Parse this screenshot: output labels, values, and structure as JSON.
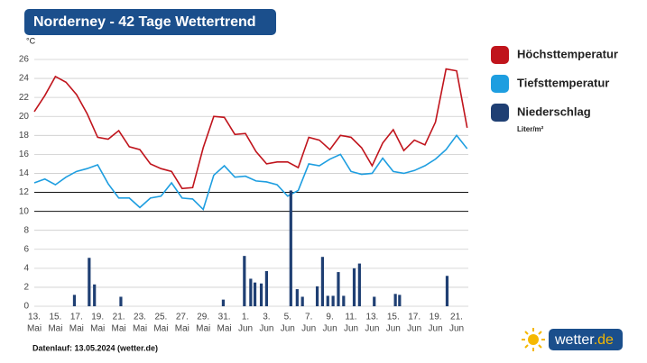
{
  "chart_data": {
    "type": "line",
    "title": "Norderney - 42 Tage Wettertrend",
    "y_unit": "°C",
    "precipitation_unit": "Liter/m²",
    "footnote": "Datenlauf: 13.05.2024 (wetter.de)",
    "logo": {
      "name": "wetter",
      "suffix": ".de"
    },
    "categories": [
      [
        "13.",
        "Mai"
      ],
      null,
      [
        "15.",
        "Mai"
      ],
      null,
      [
        "17.",
        "Mai"
      ],
      null,
      [
        "19.",
        "Mai"
      ],
      null,
      [
        "21.",
        "Mai"
      ],
      null,
      [
        "23.",
        "Mai"
      ],
      null,
      [
        "25.",
        "Mai"
      ],
      null,
      [
        "27.",
        "Mai"
      ],
      null,
      [
        "29.",
        "Mai"
      ],
      null,
      [
        "31.",
        "Mai"
      ],
      null,
      [
        "1.",
        "Jun"
      ],
      null,
      [
        "3.",
        "Jun"
      ],
      null,
      [
        "5.",
        "Jun"
      ],
      null,
      [
        "7.",
        "Jun"
      ],
      null,
      [
        "9.",
        "Jun"
      ],
      null,
      [
        "11.",
        "Jun"
      ],
      null,
      [
        "13.",
        "Jun"
      ],
      null,
      [
        "15.",
        "Jun"
      ],
      null,
      [
        "17.",
        "Jun"
      ],
      null,
      [
        "19.",
        "Jun"
      ],
      null,
      [
        "21.",
        "Jun"
      ],
      null
    ],
    "series": [
      {
        "name": "Höchsttemperatur",
        "color": "#c0141c",
        "values": [
          20.5,
          22.2,
          24.2,
          23.6,
          22.3,
          20.3,
          17.8,
          17.6,
          18.5,
          16.8,
          16.5,
          15.0,
          14.5,
          14.2,
          12.4,
          12.5,
          16.7,
          20.0,
          19.9,
          18.1,
          18.2,
          16.3,
          15.0,
          15.2,
          15.2,
          14.6,
          17.8,
          17.5,
          16.5,
          18.0,
          17.8,
          16.7,
          14.8,
          17.2,
          18.6,
          16.4,
          17.5,
          17.0,
          19.4,
          25.0,
          24.8,
          18.8
        ]
      },
      {
        "name": "Tiefsttemperatur",
        "color": "#1e9ee0",
        "values": [
          13.0,
          13.4,
          12.8,
          13.6,
          14.2,
          14.5,
          14.9,
          12.9,
          11.4,
          11.4,
          10.4,
          11.4,
          11.6,
          13.0,
          11.4,
          11.3,
          10.2,
          13.8,
          14.8,
          13.6,
          13.7,
          13.2,
          13.1,
          12.8,
          11.6,
          12.2,
          15.0,
          14.8,
          15.5,
          16.0,
          14.2,
          13.9,
          14.0,
          15.6,
          14.2,
          14.0,
          14.3,
          14.8,
          15.5,
          16.5,
          18.0,
          16.6
        ]
      },
      {
        "name": "Niederschlag",
        "color": "#1f3f73",
        "type": "bar",
        "x": [
          3.8,
          5.2,
          5.7,
          8.2,
          17.9,
          19.9,
          20.5,
          20.9,
          21.5,
          22.0,
          24.3,
          24.9,
          25.4,
          26.8,
          27.3,
          27.8,
          28.3,
          28.8,
          29.3,
          30.3,
          30.8,
          32.2,
          34.2,
          34.6,
          39.1
        ],
        "values": [
          1.2,
          5.1,
          2.3,
          1.0,
          0.7,
          5.3,
          2.9,
          2.5,
          2.4,
          3.7,
          12.2,
          1.8,
          1.0,
          2.1,
          5.2,
          1.1,
          1.1,
          3.6,
          1.1,
          4.0,
          4.5,
          1.0,
          1.3,
          1.2,
          3.2
        ]
      }
    ],
    "ylim": [
      0,
      26
    ],
    "yticks": [
      0,
      2,
      4,
      6,
      8,
      10,
      12,
      14,
      16,
      18,
      20,
      22,
      24,
      26
    ],
    "grid": true,
    "emphasized_yticks": [
      10,
      12
    ]
  }
}
